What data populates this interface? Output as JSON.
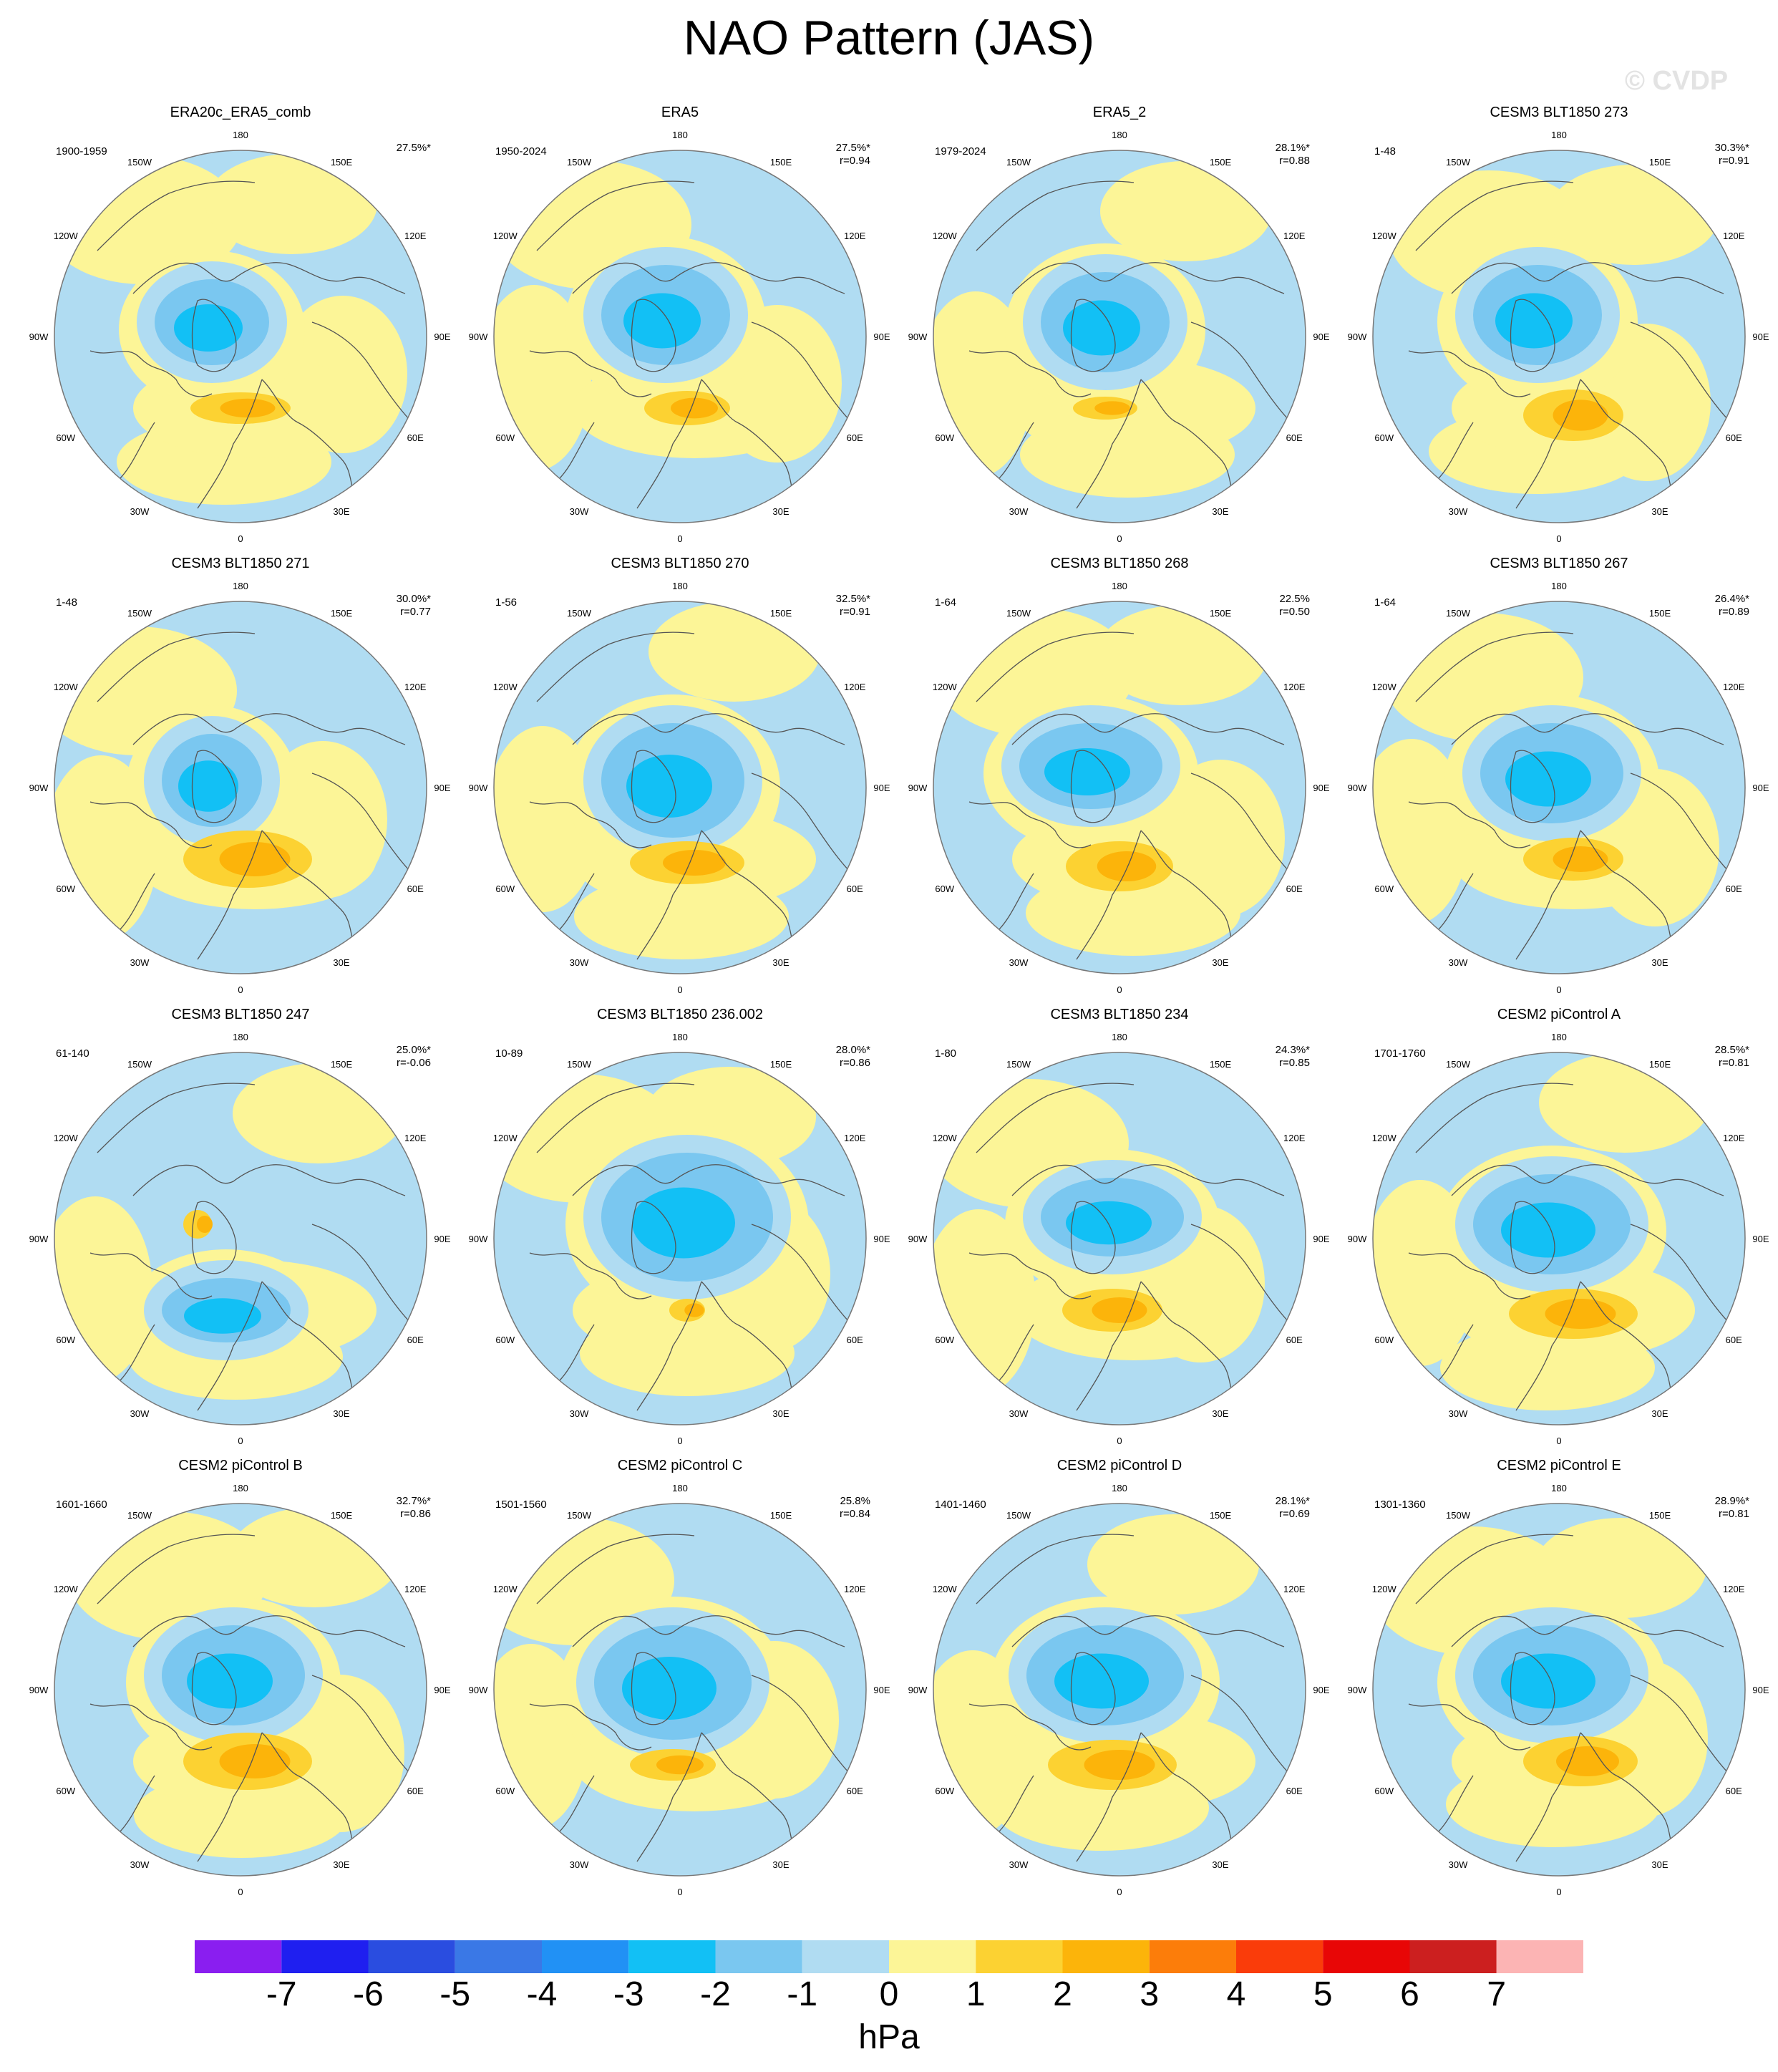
{
  "title": "NAO Pattern (JAS)",
  "watermark": "© CVDP",
  "units": "hPa",
  "colors": {
    "neg7": "#8a1ef0",
    "neg6": "#1f1ff0",
    "neg5": "#2a4de0",
    "neg4": "#3a78e6",
    "neg3": "#2191f5",
    "neg2": "#12c0f5",
    "neg1": "#7ac7f0",
    "neg0": "#b0dcf2",
    "pos0": "#fcf597",
    "pos1": "#fcd232",
    "pos2": "#fcb40a",
    "pos3": "#fc7d0a",
    "pos4": "#fa3c0a",
    "pos5": "#e80606",
    "pos6": "#cc1f1f",
    "pos7": "#fcb4b4",
    "coast": "#555555",
    "circle": "#777777"
  },
  "longitude_labels": [
    "180",
    "150E",
    "120E",
    "90E",
    "60E",
    "30E",
    "0",
    "30W",
    "60W",
    "90W",
    "120W",
    "150W"
  ],
  "colorbar": {
    "levels": [
      "-7",
      "-6",
      "-5",
      "-4",
      "-3",
      "-2",
      "-1",
      "0",
      "1",
      "2",
      "3",
      "4",
      "5",
      "6",
      "7"
    ]
  },
  "panels": [
    {
      "title": "ERA20c_ERA5_comb",
      "period": "1900-1959",
      "pct": "27.5%*",
      "r": ""
    },
    {
      "title": "ERA5",
      "period": "1950-2024",
      "pct": "27.5%*",
      "r": "r=0.94"
    },
    {
      "title": "ERA5_2",
      "period": "1979-2024",
      "pct": "28.1%*",
      "r": "r=0.88"
    },
    {
      "title": "CESM3 BLT1850 273",
      "period": "1-48",
      "pct": "30.3%*",
      "r": "r=0.91"
    },
    {
      "title": "CESM3 BLT1850 271",
      "period": "1-48",
      "pct": "30.0%*",
      "r": "r=0.77"
    },
    {
      "title": "CESM3 BLT1850 270",
      "period": "1-56",
      "pct": "32.5%*",
      "r": "r=0.91"
    },
    {
      "title": "CESM3 BLT1850 268",
      "period": "1-64",
      "pct": "22.5%",
      "r": "r=0.50"
    },
    {
      "title": "CESM3 BLT1850 267",
      "period": "1-64",
      "pct": "26.4%*",
      "r": "r=0.89"
    },
    {
      "title": "CESM3 BLT1850 247",
      "period": "61-140",
      "pct": "25.0%*",
      "r": "r=-0.06"
    },
    {
      "title": "CESM3 BLT1850 236.002",
      "period": "10-89",
      "pct": "28.0%*",
      "r": "r=0.86"
    },
    {
      "title": "CESM3 BLT1850 234",
      "period": "1-80",
      "pct": "24.3%*",
      "r": "r=0.85"
    },
    {
      "title": "CESM2 piControl A",
      "period": "1701-1760",
      "pct": "28.5%*",
      "r": "r=0.81"
    },
    {
      "title": "CESM2 piControl B",
      "period": "1601-1660",
      "pct": "32.7%*",
      "r": "r=0.86"
    },
    {
      "title": "CESM2 piControl C",
      "period": "1501-1560",
      "pct": "25.8%",
      "r": "r=0.84"
    },
    {
      "title": "CESM2 piControl D",
      "period": "1401-1460",
      "pct": "28.1%*",
      "r": "r=0.69"
    },
    {
      "title": "CESM2 piControl E",
      "period": "1301-1360",
      "pct": "28.9%*",
      "r": "r=0.81"
    }
  ]
}
